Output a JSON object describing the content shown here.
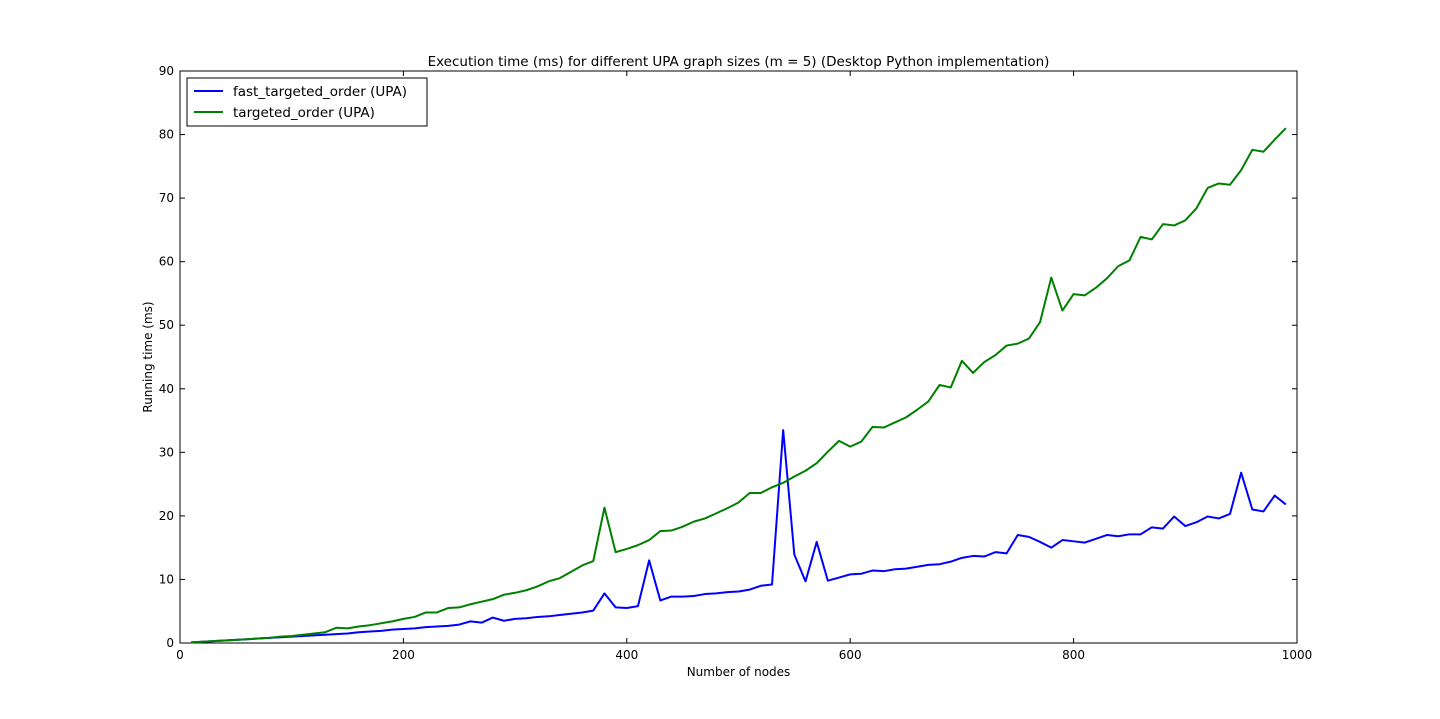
{
  "chart_data": {
    "type": "line",
    "title": "Execution time (ms) for different UPA graph sizes (m = 5) (Desktop Python implementation)",
    "xlabel": "Number of nodes",
    "ylabel": "Running time (ms)",
    "xlim": [
      0,
      1000
    ],
    "ylim": [
      0,
      90
    ],
    "xticks": [
      0,
      200,
      400,
      600,
      800,
      1000
    ],
    "yticks": [
      0,
      10,
      20,
      30,
      40,
      50,
      60,
      70,
      80,
      90
    ],
    "grid": false,
    "legend_position": "top-left",
    "x": [
      10,
      20,
      30,
      40,
      50,
      60,
      70,
      80,
      90,
      100,
      110,
      120,
      130,
      140,
      150,
      160,
      170,
      180,
      190,
      200,
      210,
      220,
      230,
      240,
      250,
      260,
      270,
      280,
      290,
      300,
      310,
      320,
      330,
      340,
      350,
      360,
      370,
      380,
      390,
      400,
      410,
      420,
      430,
      440,
      450,
      460,
      470,
      480,
      490,
      500,
      510,
      520,
      530,
      540,
      550,
      560,
      570,
      580,
      590,
      600,
      610,
      620,
      630,
      640,
      650,
      660,
      670,
      680,
      690,
      700,
      710,
      720,
      730,
      740,
      750,
      760,
      770,
      780,
      790,
      800,
      810,
      820,
      830,
      840,
      850,
      860,
      870,
      880,
      890,
      900,
      910,
      920,
      930,
      940,
      950,
      960,
      970,
      980,
      990
    ],
    "series": [
      {
        "name": "fast_targeted_order (UPA)",
        "color": "#0000ff",
        "values": [
          0.1,
          0.2,
          0.3,
          0.4,
          0.5,
          0.6,
          0.7,
          0.8,
          0.9,
          1.0,
          1.1,
          1.2,
          1.3,
          1.4,
          1.5,
          1.7,
          1.8,
          1.9,
          2.1,
          2.2,
          2.3,
          2.5,
          2.6,
          2.7,
          2.9,
          3.4,
          3.2,
          4.0,
          3.5,
          3.8,
          3.9,
          4.1,
          4.2,
          4.4,
          4.6,
          4.8,
          5.1,
          7.8,
          5.6,
          5.5,
          5.8,
          13.0,
          6.7,
          7.3,
          7.3,
          7.4,
          7.7,
          7.8,
          8.0,
          8.1,
          8.4,
          9.0,
          9.2,
          33.5,
          13.9,
          9.7,
          15.9,
          9.8,
          10.3,
          10.8,
          10.9,
          11.4,
          11.3,
          11.6,
          11.7,
          12.0,
          12.3,
          12.4,
          12.8,
          13.4,
          13.7,
          13.6,
          14.3,
          14.1,
          17.0,
          16.7,
          15.9,
          15.0,
          16.2,
          16.0,
          15.8,
          16.4,
          17.0,
          16.8,
          17.1,
          17.1,
          18.2,
          18.0,
          19.9,
          18.4,
          19.0,
          19.9,
          19.6,
          20.3,
          26.8,
          21.0,
          20.7,
          23.2,
          21.8
        ]
      },
      {
        "name": "targeted_order (UPA)",
        "color": "#008000",
        "values": [
          0.1,
          0.2,
          0.3,
          0.4,
          0.5,
          0.6,
          0.7,
          0.8,
          1.0,
          1.1,
          1.3,
          1.5,
          1.7,
          2.4,
          2.3,
          2.6,
          2.8,
          3.1,
          3.4,
          3.8,
          4.1,
          4.8,
          4.8,
          5.5,
          5.6,
          6.1,
          6.5,
          6.9,
          7.6,
          7.9,
          8.3,
          8.9,
          9.7,
          10.2,
          11.2,
          12.2,
          12.9,
          21.3,
          14.3,
          14.8,
          15.4,
          16.2,
          17.6,
          17.7,
          18.3,
          19.1,
          19.6,
          20.4,
          21.2,
          22.1,
          23.6,
          23.6,
          24.5,
          25.2,
          26.2,
          27.1,
          28.3,
          30.1,
          31.8,
          30.9,
          31.7,
          34.0,
          33.9,
          34.7,
          35.5,
          36.7,
          38.0,
          40.6,
          40.2,
          44.4,
          42.5,
          44.2,
          45.3,
          46.8,
          47.1,
          47.9,
          50.5,
          57.5,
          52.3,
          54.9,
          54.7,
          55.9,
          57.4,
          59.3,
          60.2,
          63.9,
          63.5,
          65.9,
          65.7,
          66.5,
          68.4,
          71.6,
          72.3,
          72.1,
          74.4,
          77.6,
          77.3,
          79.2,
          81.0
        ]
      }
    ]
  }
}
